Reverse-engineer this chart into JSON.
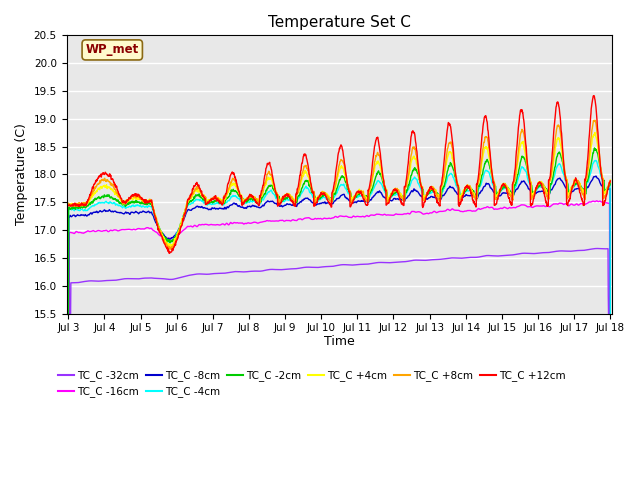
{
  "title": "Temperature Set C",
  "xlabel": "Time",
  "ylabel": "Temperature (C)",
  "ylim": [
    15.5,
    20.5
  ],
  "xlim_days": [
    3,
    18
  ],
  "x_ticks": [
    3,
    4,
    5,
    6,
    7,
    8,
    9,
    10,
    11,
    12,
    13,
    14,
    15,
    16,
    17,
    18
  ],
  "x_tick_labels": [
    "Jul 3",
    "Jul 4",
    "Jul 5",
    "Jul 6",
    "Jul 7",
    "Jul 8",
    "Jul 9",
    "Jul 10",
    "Jul 11",
    "Jul 12",
    "Jul 13",
    "Jul 14",
    "Jul 15",
    "Jul 16",
    "Jul 17",
    "Jul 18"
  ],
  "annotation_text": "WP_met",
  "annotation_color": "#8B0000",
  "annotation_bg": "#FFFACD",
  "series_colors": {
    "TC_C -32cm": "#9933FF",
    "TC_C -16cm": "#FF00FF",
    "TC_C -8cm": "#0000CD",
    "TC_C -4cm": "#00FFFF",
    "TC_C -2cm": "#00CC00",
    "TC_C +4cm": "#FFFF00",
    "TC_C +8cm": "#FFA500",
    "TC_C +12cm": "#FF0000"
  },
  "bg_color": "#E8E8E8",
  "grid_color": "#FFFFFF"
}
